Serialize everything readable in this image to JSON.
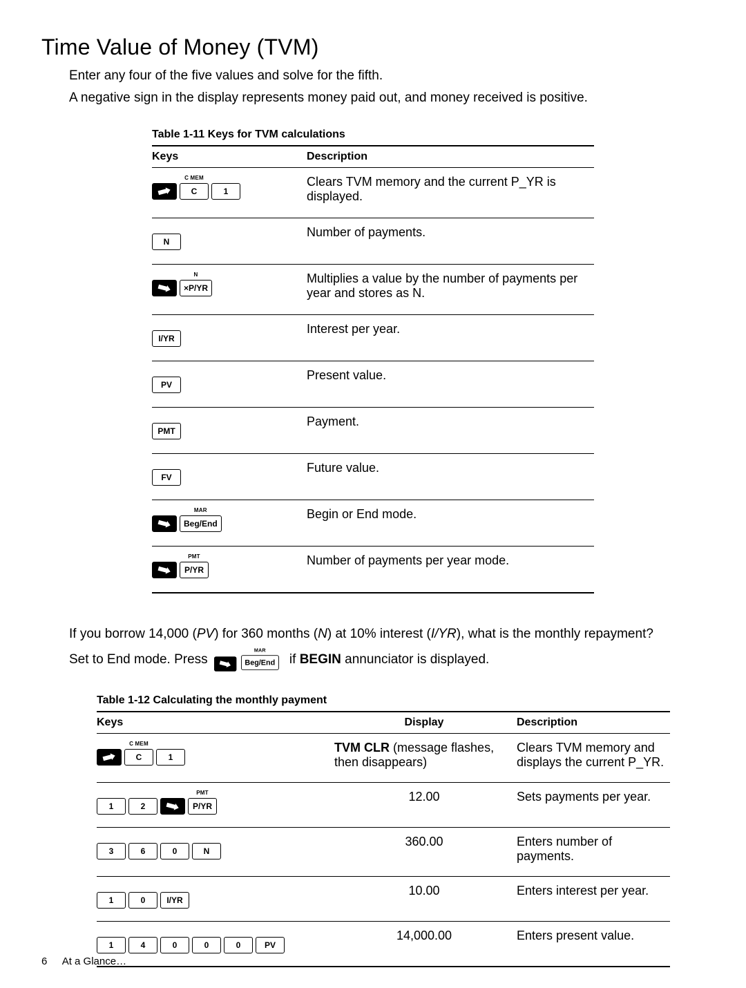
{
  "title": "Time Value of Money (TVM)",
  "intro_lines": [
    "Enter any four of the five values and solve for the fifth.",
    "A negative sign in the display represents money paid out, and money received is positive."
  ],
  "t11": {
    "caption": "Table 1-11  Keys for TVM calculations",
    "head_keys": "Keys",
    "head_desc": "Description",
    "rows": [
      {
        "keys": [
          {
            "t": "shift-up"
          },
          {
            "t": "key",
            "label": "C",
            "ann": "C MEM"
          },
          {
            "t": "key",
            "label": "1",
            "noann": true
          }
        ],
        "desc": "Clears TVM memory and the current P_YR is displayed."
      },
      {
        "keys": [
          {
            "t": "key",
            "label": "N",
            "noann": true
          }
        ],
        "desc": "Number of payments."
      },
      {
        "keys": [
          {
            "t": "shift-down"
          },
          {
            "t": "key",
            "label": "×P/YR",
            "ann": "N"
          }
        ],
        "desc": "Multiplies a value by the number of payments per year and stores as N."
      },
      {
        "keys": [
          {
            "t": "key",
            "label": "I/YR",
            "noann": true
          }
        ],
        "desc": "Interest per year."
      },
      {
        "keys": [
          {
            "t": "key",
            "label": "PV",
            "noann": true
          }
        ],
        "desc": "Present value."
      },
      {
        "keys": [
          {
            "t": "key",
            "label": "PMT",
            "noann": true
          }
        ],
        "desc": "Payment."
      },
      {
        "keys": [
          {
            "t": "key",
            "label": "FV",
            "noann": true
          }
        ],
        "desc": "Future value."
      },
      {
        "keys": [
          {
            "t": "shift-down"
          },
          {
            "t": "key",
            "label": "Beg/End",
            "ann": "MAR"
          }
        ],
        "desc": "Begin or End mode."
      },
      {
        "keys": [
          {
            "t": "shift-down"
          },
          {
            "t": "key",
            "label": "P/YR",
            "ann": "PMT"
          }
        ],
        "desc": "Number of payments per year mode."
      }
    ]
  },
  "example": {
    "q_pre": "If you borrow 14,000 (",
    "q_pv": "PV",
    "q_mid1": ") for 360 months (",
    "q_n": "N",
    "q_mid2": ") at 10% interest (",
    "q_iyr": "I/YR",
    "q_post": "), what is the monthly repayment?",
    "set_pre": "Set to End mode. Press ",
    "set_mid": " if ",
    "set_begin": "BEGIN",
    "set_post": " annunciator is displayed."
  },
  "t12": {
    "caption": "Table 1-12  Calculating the monthly payment",
    "head_keys": "Keys",
    "head_disp": "Display",
    "head_desc": "Description",
    "rows": [
      {
        "keys": [
          {
            "t": "shift-up"
          },
          {
            "t": "key",
            "label": "C",
            "ann": "C MEM"
          },
          {
            "t": "key",
            "label": "1",
            "noann": true
          }
        ],
        "disp_bold": "TVM CLR",
        "disp_rest": " (message flashes, then disappears)",
        "desc": "Clears TVM memory and displays the current P_YR."
      },
      {
        "keys": [
          {
            "t": "key",
            "label": "1",
            "noann": true
          },
          {
            "t": "key",
            "label": "2",
            "noann": true
          },
          {
            "t": "shift-down"
          },
          {
            "t": "key",
            "label": "P/YR",
            "ann": "PMT"
          }
        ],
        "disp": "12.00",
        "desc": "Sets payments per year."
      },
      {
        "keys": [
          {
            "t": "key",
            "label": "3",
            "noann": true
          },
          {
            "t": "key",
            "label": "6",
            "noann": true
          },
          {
            "t": "key",
            "label": "0",
            "noann": true
          },
          {
            "t": "key",
            "label": "N",
            "noann": true
          }
        ],
        "disp": "360.00",
        "desc": "Enters number of payments."
      },
      {
        "keys": [
          {
            "t": "key",
            "label": "1",
            "noann": true
          },
          {
            "t": "key",
            "label": "0",
            "noann": true
          },
          {
            "t": "key",
            "label": "I/YR",
            "noann": true
          }
        ],
        "disp": "10.00",
        "desc": "Enters interest per year."
      },
      {
        "keys": [
          {
            "t": "key",
            "label": "1",
            "noann": true
          },
          {
            "t": "key",
            "label": "4",
            "noann": true
          },
          {
            "t": "key",
            "label": "0",
            "noann": true
          },
          {
            "t": "key",
            "label": "0",
            "noann": true
          },
          {
            "t": "key",
            "label": "0",
            "noann": true
          },
          {
            "t": "key",
            "label": "PV",
            "noann": true
          }
        ],
        "disp": "14,000.00",
        "desc": "Enters present value."
      }
    ]
  },
  "footer": {
    "page_number": "6",
    "section": "At a Glance…"
  }
}
